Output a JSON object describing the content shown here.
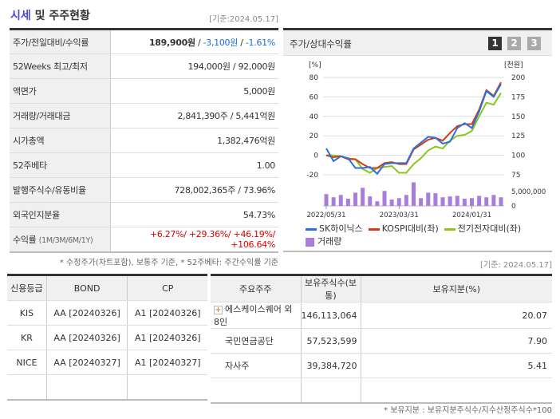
{
  "header": {
    "title_hl": "시세",
    "title_rest": " 및 주주현황",
    "basis": "[기준:2024.05.17]"
  },
  "info": [
    {
      "label": "주가/전일대비/수익률",
      "price": "189,900원",
      "sep": " / ",
      "change": "-3,100원",
      "sep2": " / ",
      "rate": "-1.61%"
    },
    {
      "label": "52Weeks 최고/최저",
      "value": "194,000원 / 92,000원"
    },
    {
      "label": "액면가",
      "value": "5,000원"
    },
    {
      "label": "거래량/거래대금",
      "value": "2,841,390주 / 5,441억원"
    },
    {
      "label": "시가총액",
      "value": "1,382,476억원"
    },
    {
      "label": "52주베타",
      "value": "1.00"
    },
    {
      "label": "발행주식수/유동비율",
      "value": "728,002,365주 / 73.96%"
    },
    {
      "label": "외국인지분율",
      "value": "54.73%"
    },
    {
      "label": "수익률",
      "label_sub": "(1M/3M/6M/1Y)",
      "value": "+6.27%/ +29.36%/ +46.19%/ +106.64%"
    }
  ],
  "info_note": "* 수정주가(차트포함), 보통주 기준, * 52주베타: 주간수익률 기준",
  "chart_panel": {
    "title": "주가/상대수익률",
    "pages": [
      "1",
      "2",
      "3"
    ],
    "active_page": "1",
    "basis": "[기준: 2024.05.17]"
  },
  "chart_data": {
    "type": "line",
    "left_unit": "[%]",
    "right_unit": "[천원]",
    "left_ticks": [
      "80",
      "60",
      "40",
      "20",
      "0",
      "-20"
    ],
    "ylim_left": [
      -20,
      80
    ],
    "right_ticks": [
      "200",
      "175",
      "150",
      "125",
      "100",
      "75"
    ],
    "ylim_right": [
      75,
      200
    ],
    "volume_ticks": [
      "5,000,000",
      "0"
    ],
    "x_ticks": [
      "2022/05/31",
      "2023/03/31",
      "2024/01/31"
    ],
    "grid": true,
    "series": [
      {
        "name": "SK하이닉스",
        "color": "#2a6fe0",
        "values": [
          7,
          -6,
          -1,
          -3,
          -13,
          -13,
          -12,
          -19,
          -9,
          -8,
          -8,
          -8,
          7,
          13,
          19,
          18,
          12,
          14,
          28,
          33,
          28,
          45,
          66,
          60,
          73
        ]
      },
      {
        "name": "KOSPI대비(좌)",
        "color": "#d63a10",
        "values": [
          0,
          -2,
          -1,
          -4,
          -4,
          -9,
          -13,
          -13,
          -8,
          -7,
          -9,
          -9,
          6,
          11,
          16,
          18,
          15,
          23,
          30,
          32,
          32,
          47,
          67,
          61,
          75
        ]
      },
      {
        "name": "전기전자대비(좌)",
        "color": "#8cc41a",
        "values": [
          0,
          0,
          -1,
          -3,
          -4,
          -14,
          -18,
          -13,
          -12,
          -11,
          -18,
          -18,
          -9,
          -3,
          5,
          9,
          7,
          15,
          20,
          21,
          25,
          40,
          54,
          52,
          64
        ]
      }
    ],
    "volume": {
      "name": "거래량",
      "color": "#a97ddb",
      "values": [
        4.1,
        3.0,
        3.8,
        2.5,
        4.6,
        6.3,
        3.3,
        1.6,
        5.2,
        2.2,
        2.7,
        3.8,
        8.2,
        2.7,
        4.6,
        4.4,
        3.0,
        3.3,
        3.5,
        2.5,
        2.7,
        3.5,
        3.0,
        3.8,
        3.0
      ],
      "unit_max": 5000000
    }
  },
  "credit": {
    "headers": [
      "신용등급",
      "BOND",
      "CP"
    ],
    "rows": [
      [
        "KIS",
        "AA  [20240326]",
        "A1  [20240326]"
      ],
      [
        "KR",
        "AA  [20240326]",
        "A1  [20240326]"
      ],
      [
        "NICE",
        "AA  [20240327]",
        "A1  [20240327]"
      ]
    ]
  },
  "holders": {
    "headers": [
      "주요주주",
      "보유주식수(보통)",
      "보유지분(%)"
    ],
    "rows": [
      [
        "에스케이스퀘어 외 8인",
        "146,113,064",
        "20.07"
      ],
      [
        "국민연금공단",
        "57,523,599",
        "7.90"
      ],
      [
        "자사주",
        "39,384,720",
        "5.41"
      ]
    ],
    "note": "* 보유지분 : 보유지분주식수/지수산정주식수*100"
  }
}
